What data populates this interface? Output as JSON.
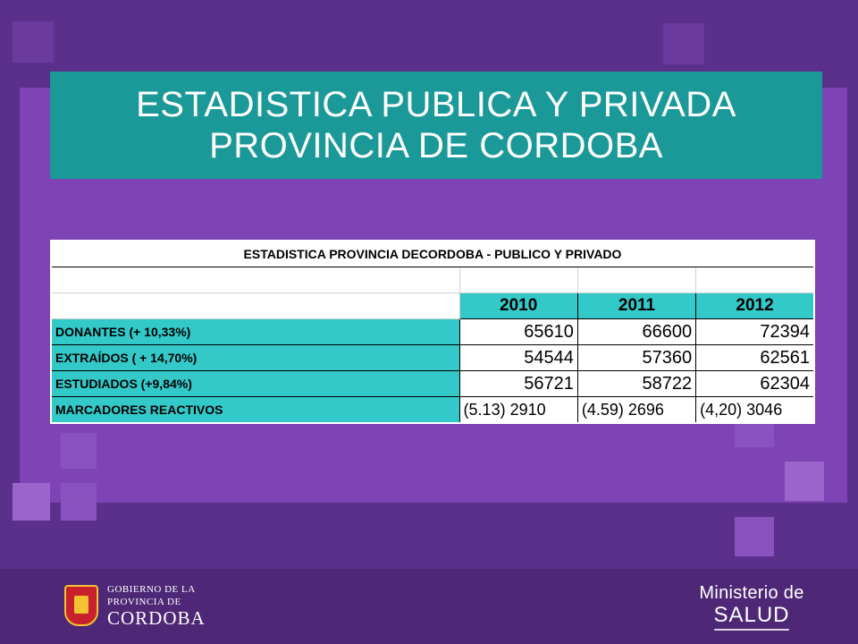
{
  "slide": {
    "title_lines": [
      "ESTADISTICA PUBLICA Y PRIVADA",
      "PROVINCIA DE CORDOBA"
    ]
  },
  "table": {
    "caption": "ESTADISTICA PROVINCIA DECORDOBA - PUBLICO Y PRIVADO",
    "years": [
      "2010",
      "2011",
      "2012"
    ],
    "rows": [
      {
        "label": "DONANTES (+ 10,33%)",
        "values": [
          "65610",
          "66600",
          "72394"
        ]
      },
      {
        "label": "EXTRAÍDOS ( + 14,70%)",
        "values": [
          "54544",
          "57360",
          "62561"
        ]
      },
      {
        "label": "ESTUDIADOS (+9,84%)",
        "values": [
          "56721",
          "58722",
          "62304"
        ]
      },
      {
        "label": "MARCADORES REACTIVOS",
        "values": [
          "(5.13) 2910",
          "(4.59) 2696",
          "(4,20)  3046"
        ]
      }
    ]
  },
  "footer": {
    "gov_line1": "GOBIERNO DE LA",
    "gov_line2": "PROVINCIA DE",
    "gov_line3": "CORDOBA",
    "ministry_line1": "Ministerio de",
    "ministry_line2": "SALUD"
  },
  "colors": {
    "background": "#5b2f8c",
    "title_box": "#1b9998",
    "table_header": "#33c9c9"
  }
}
